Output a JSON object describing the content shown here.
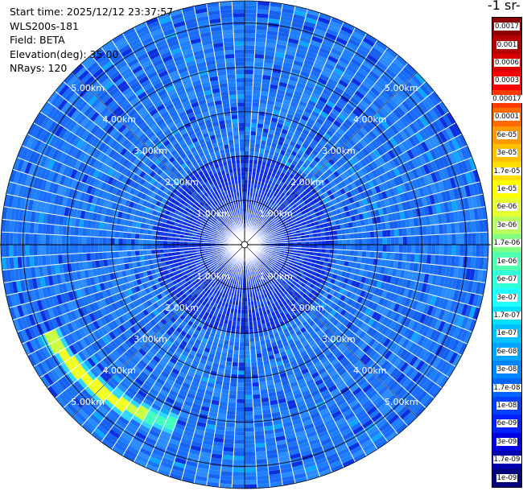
{
  "info": {
    "start_time": "Start time: 2025/12/12 23:37:57",
    "instrument": "WLS200s-181",
    "field": "Field: BETA",
    "elevation": "Elevation(deg): 35.00",
    "nrays": "NRays: 120"
  },
  "colorbar": {
    "title": "-1 sr-",
    "labels": [
      "0.0017",
      "0.001",
      "0.0006",
      "0.0003",
      "0.00017",
      "0.0001",
      "6e-05",
      "3e-05",
      "1.7e-05",
      "1e-05",
      "6e-06",
      "3e-06",
      "1.7e-06",
      "1e-06",
      "6e-07",
      "3e-07",
      "1.7e-07",
      "1e-07",
      "6e-08",
      "3e-08",
      "1.7e-08",
      "1e-08",
      "6e-09",
      "3e-09",
      "1.7e-09",
      "1e-09"
    ],
    "colors": [
      "#8b0000",
      "#b40000",
      "#d80000",
      "#ff0000",
      "#ff3a00",
      "#ff6a00",
      "#ff9a00",
      "#ffc000",
      "#ffe000",
      "#ffff00",
      "#e6ff30",
      "#b8ff60",
      "#80ff80",
      "#50ffb0",
      "#30ffd8",
      "#20ffff",
      "#00e0ff",
      "#00c0ff",
      "#00a4ff",
      "#0084ff",
      "#0064ff",
      "#0040ff",
      "#0020ff",
      "#0000e0",
      "#0000b0",
      "#00007a"
    ]
  },
  "chart_data": {
    "type": "heatmap",
    "title": "",
    "projection": "polar-ppi",
    "n_rays": 120,
    "elevation_deg": 35.0,
    "range_max_km": 5.5,
    "range_rings_km": [
      1,
      2,
      3,
      4,
      5
    ],
    "range_labels": [
      "1.00km",
      "2.00km",
      "3.00km",
      "4.00km",
      "5.00km"
    ],
    "background_beta": 3e-08,
    "features": [
      {
        "name": "arc",
        "azimuth_deg": [
          200,
          246
        ],
        "range_km": [
          4.1,
          5.0
        ],
        "beta_peak": 1e-05
      }
    ]
  }
}
